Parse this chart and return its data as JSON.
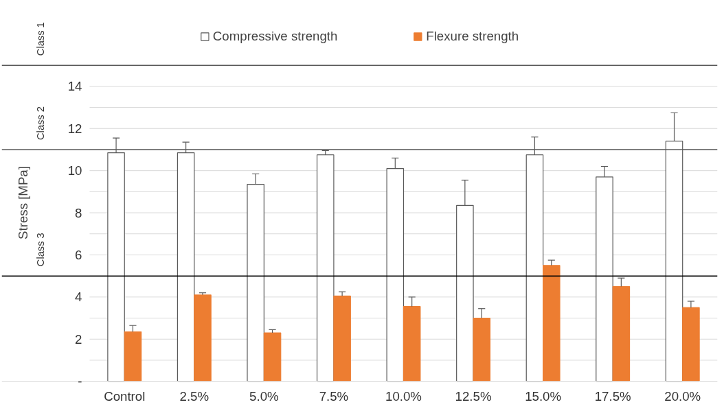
{
  "chart_data": {
    "type": "bar",
    "ylabel": "Stress [MPa]",
    "categories": [
      "Control",
      "2.5%",
      "5.0%",
      "7.5%",
      "10.0%",
      "12.5%",
      "15.0%",
      "17.5%",
      "20.0%"
    ],
    "series": [
      {
        "name": "Compressive strength",
        "color": "#ffffff",
        "values": [
          10.85,
          10.85,
          9.35,
          10.75,
          10.1,
          8.35,
          10.75,
          9.7,
          11.4
        ],
        "errors": [
          [
            10.85,
            11.55
          ],
          [
            10.85,
            11.35
          ],
          [
            9.35,
            9.85
          ],
          [
            10.75,
            10.95
          ],
          [
            10.1,
            10.6
          ],
          [
            8.35,
            9.55
          ],
          [
            10.75,
            11.6
          ],
          [
            9.7,
            10.2
          ],
          [
            11.4,
            12.75
          ]
        ]
      },
      {
        "name": "Flexure strength",
        "color": "#ed7d31",
        "values": [
          2.35,
          4.1,
          2.3,
          4.05,
          3.55,
          3.0,
          5.5,
          4.5,
          3.5
        ],
        "errors": [
          [
            2.35,
            2.65
          ],
          [
            4.1,
            4.2
          ],
          [
            2.3,
            2.45
          ],
          [
            4.05,
            4.25
          ],
          [
            3.55,
            4.0
          ],
          [
            3.0,
            3.45
          ],
          [
            5.5,
            5.75
          ],
          [
            4.5,
            4.9
          ],
          [
            3.5,
            3.8
          ]
        ]
      }
    ],
    "ylim": [
      0,
      15
    ],
    "yticks": [
      {
        "value": 0,
        "label": "-"
      },
      {
        "value": 1,
        "label": null
      },
      2,
      {
        "value": 3,
        "label": null
      },
      4,
      {
        "value": 5,
        "label": null
      },
      6,
      {
        "value": 7,
        "label": null
      },
      8,
      {
        "value": 9,
        "label": null
      },
      10,
      {
        "value": 11,
        "label": null
      },
      12,
      {
        "value": 13,
        "label": null
      },
      14
    ],
    "grid": "y",
    "legend": "top",
    "ref_lines": [
      {
        "axis": "y",
        "value": 15,
        "label": "Class 1",
        "color": "#595959"
      },
      {
        "axis": "y",
        "value": 11,
        "label": "Class 2",
        "color": "#595959"
      },
      {
        "axis": "y",
        "value": 5,
        "label": "Class 3",
        "color": "#000000"
      }
    ]
  }
}
